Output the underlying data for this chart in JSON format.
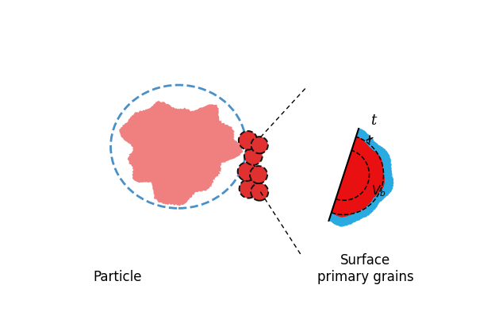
{
  "particle_color": "#F08080",
  "particle_ellipse_color": "#4A90C8",
  "grain_fill_color": "#E03030",
  "grain_edge_color": "#111111",
  "blue_layer_color": "#29ABE2",
  "red_inner_color": "#E81010",
  "label_particle": "Particle",
  "label_surface": "Surface\nprimary grains",
  "label_t": "t",
  "label_vb": "$V_b$",
  "bg_color": "#ffffff",
  "figw": 6.19,
  "figh": 3.93,
  "dpi": 100
}
